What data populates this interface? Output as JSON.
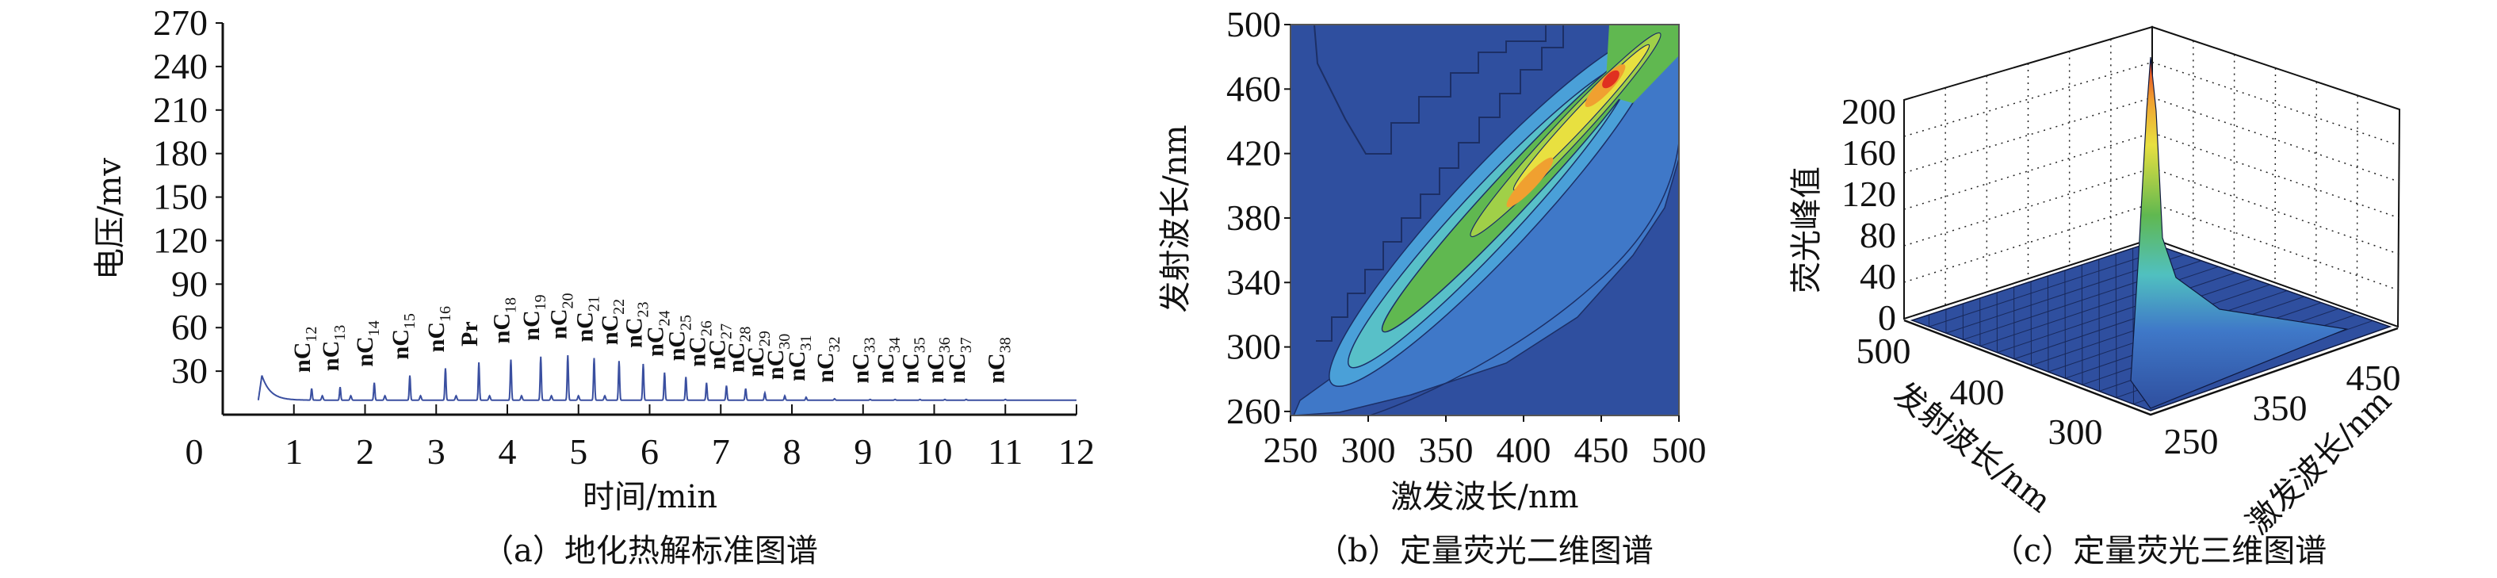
{
  "chart_data": [
    {
      "type": "line",
      "panel": "a",
      "caption": "（a）地化热解标准图谱",
      "xlabel": "时间/min",
      "ylabel": "电压/mv",
      "xlim": [
        0,
        12
      ],
      "ylim": [
        0,
        270
      ],
      "xticks": [
        "0",
        "1",
        "2",
        "3",
        "4",
        "5",
        "6",
        "7",
        "8",
        "9",
        "10",
        "11",
        "12"
      ],
      "yticks": [
        "30",
        "60",
        "90",
        "120",
        "150",
        "180",
        "210",
        "240",
        "270"
      ],
      "line_color": "#3a4fa0",
      "baseline": 10,
      "initial_hump": {
        "x": 0.55,
        "y": 27
      },
      "peaks": [
        {
          "prefix": "nC",
          "sub": "12",
          "x": 1.25,
          "y": 18
        },
        {
          "prefix": "nC",
          "sub": "13",
          "x": 1.65,
          "y": 19
        },
        {
          "prefix": "nC",
          "sub": "14",
          "x": 2.13,
          "y": 22
        },
        {
          "prefix": "nC",
          "sub": "15",
          "x": 2.63,
          "y": 27
        },
        {
          "prefix": "nC",
          "sub": "16",
          "x": 3.13,
          "y": 32
        },
        {
          "prefix": "Pr",
          "sub": "",
          "x": 3.6,
          "y": 36
        },
        {
          "prefix": "nC",
          "sub": "18",
          "x": 4.05,
          "y": 38
        },
        {
          "prefix": "nC",
          "sub": "19",
          "x": 4.47,
          "y": 40
        },
        {
          "prefix": "nC",
          "sub": "20",
          "x": 4.85,
          "y": 41
        },
        {
          "prefix": "nC",
          "sub": "21",
          "x": 5.22,
          "y": 39
        },
        {
          "prefix": "nC",
          "sub": "22",
          "x": 5.57,
          "y": 37
        },
        {
          "prefix": "nC",
          "sub": "23",
          "x": 5.91,
          "y": 35
        },
        {
          "prefix": "nC",
          "sub": "24",
          "x": 6.21,
          "y": 29
        },
        {
          "prefix": "nC",
          "sub": "25",
          "x": 6.51,
          "y": 26
        },
        {
          "prefix": "nC",
          "sub": "26",
          "x": 6.8,
          "y": 22
        },
        {
          "prefix": "nC",
          "sub": "27",
          "x": 7.08,
          "y": 20
        },
        {
          "prefix": "nC",
          "sub": "28",
          "x": 7.35,
          "y": 18
        },
        {
          "prefix": "nC",
          "sub": "29",
          "x": 7.62,
          "y": 15
        },
        {
          "prefix": "nC",
          "sub": "30",
          "x": 7.9,
          "y": 13
        },
        {
          "prefix": "nC",
          "sub": "31",
          "x": 8.2,
          "y": 12
        },
        {
          "prefix": "nC",
          "sub": "32",
          "x": 8.6,
          "y": 11
        },
        {
          "prefix": "nC",
          "sub": "33",
          "x": 9.1,
          "y": 10.5
        },
        {
          "prefix": "nC",
          "sub": "34",
          "x": 9.45,
          "y": 10.5
        },
        {
          "prefix": "nC",
          "sub": "35",
          "x": 9.8,
          "y": 10.5
        },
        {
          "prefix": "nC",
          "sub": "36",
          "x": 10.15,
          "y": 10.5
        },
        {
          "prefix": "nC",
          "sub": "37",
          "x": 10.45,
          "y": 10.5
        },
        {
          "prefix": "nC",
          "sub": "38",
          "x": 11.0,
          "y": 10.5
        }
      ]
    },
    {
      "type": "heatmap",
      "subtype": "contour",
      "panel": "b",
      "caption": "（b）定量荧光二维图谱",
      "xlabel": "激发波长/nm",
      "ylabel": "发射波长/nm",
      "xlim": [
        250,
        500
      ],
      "ylim": [
        257.5,
        500
      ],
      "xticks": [
        "250",
        "300",
        "350",
        "400",
        "450",
        "500"
      ],
      "yticks": [
        "260",
        "300",
        "340",
        "380",
        "420",
        "460",
        "500"
      ],
      "peak": {
        "excitation": 458,
        "emission": 460
      },
      "colormap": [
        "#2f4f9f",
        "#3f78c8",
        "#4aa0d8",
        "#58c0c8",
        "#60b850",
        "#a0d048",
        "#e8e040",
        "#f0a030",
        "#e03020"
      ]
    },
    {
      "type": "surface",
      "panel": "c",
      "caption": "（c）定量荧光三维图谱",
      "xlabel": "激发波长/nm",
      "ylabel": "发射波长/nm",
      "zlabel": "荧光峰值",
      "xticks": [
        "250",
        "350",
        "450"
      ],
      "yticks": [
        "300",
        "400",
        "500"
      ],
      "zticks": [
        "0",
        "40",
        "80",
        "120",
        "160",
        "200"
      ],
      "zlim": [
        0,
        200
      ],
      "peak_value": 210
    }
  ]
}
